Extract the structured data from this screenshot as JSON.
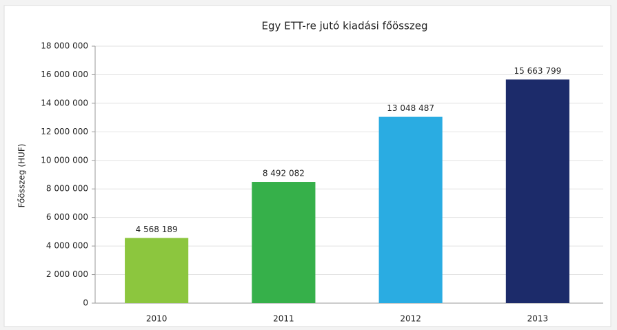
{
  "chart_data": {
    "type": "bar",
    "title": "Egy ETT-re jutó kiadási főösszeg",
    "ylabel": "Főösszeg (HUF)",
    "categories": [
      "2010",
      "2011",
      "2012",
      "2013"
    ],
    "values": [
      4568189,
      8492082,
      13048487,
      15663799
    ],
    "value_labels": [
      "4 568 189",
      "8 492 082",
      "13 048 487",
      "15 663 799"
    ],
    "colors": [
      "#8cc63e",
      "#36b04a",
      "#2aace2",
      "#1c2b6a"
    ],
    "ylim": [
      0,
      18000000
    ],
    "yticks": [
      0,
      {
        "value": 2000000,
        "label": "2 000 000"
      },
      {
        "value": 4000000,
        "label": "4 000 000"
      },
      {
        "value": 6000000,
        "label": "6 000 000"
      },
      {
        "value": 8000000,
        "label": "8 000 000"
      },
      {
        "value": 10000000,
        "label": "10 000 000"
      },
      {
        "value": 12000000,
        "label": "12 000 000"
      },
      {
        "value": 14000000,
        "label": "14 000 000"
      },
      {
        "value": 16000000,
        "label": "16 000 000"
      },
      {
        "value": 18000000,
        "label": "18 000 000"
      }
    ],
    "grid": true
  }
}
